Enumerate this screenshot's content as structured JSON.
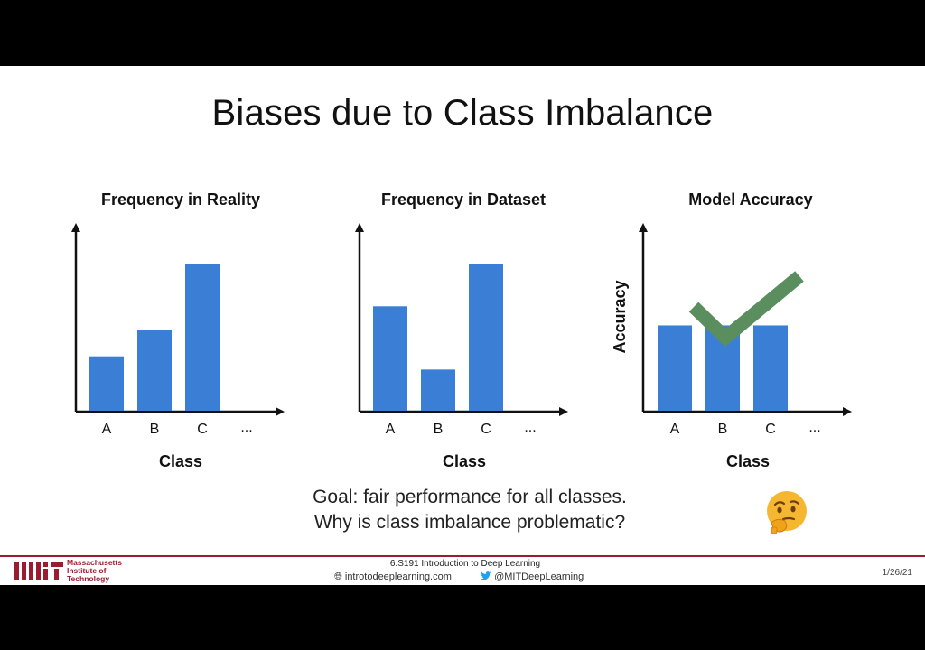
{
  "slide": {
    "title": "Biases due to Class Imbalance",
    "goal_line1": "Goal: fair performance for all classes.",
    "goal_line2": "Why is class imbalance problematic?"
  },
  "chart_data": [
    {
      "type": "bar",
      "title": "Frequency in Reality",
      "categories": [
        "A",
        "B",
        "C"
      ],
      "values": [
        0.37,
        0.55,
        1.0
      ],
      "ellipsis": "...",
      "xlabel": "Class",
      "ylabel": "",
      "color": "#3a7fd5"
    },
    {
      "type": "bar",
      "title": "Frequency in Dataset",
      "categories": [
        "A",
        "B",
        "C"
      ],
      "values": [
        0.71,
        0.28,
        1.0
      ],
      "ellipsis": "...",
      "xlabel": "Class",
      "ylabel": "",
      "color": "#3a7fd5"
    },
    {
      "type": "bar",
      "title": "Model Accuracy",
      "categories": [
        "A",
        "B",
        "C"
      ],
      "values": [
        0.58,
        0.58,
        0.58
      ],
      "ellipsis": "...",
      "xlabel": "Class",
      "ylabel": "Accuracy",
      "color": "#3a7fd5",
      "annotation_icon": "check-mark-icon",
      "annotation_color": "#5b8e5f"
    }
  ],
  "footer": {
    "institution_line1": "Massachusetts",
    "institution_line2": "Institute of",
    "institution_line3": "Technology",
    "course": "6.S191 Introduction to Deep Learning",
    "website": "introtodeeplearning.com",
    "twitter": "@MITDeepLearning",
    "date": "1/26/21"
  },
  "icons": {
    "thinking": "thinking-face-icon",
    "globe": "globe-icon",
    "twitter": "twitter-bird-icon"
  },
  "colors": {
    "accent": "#9b1c2e",
    "bar": "#3a7fd5",
    "check": "#5b8e5f"
  }
}
